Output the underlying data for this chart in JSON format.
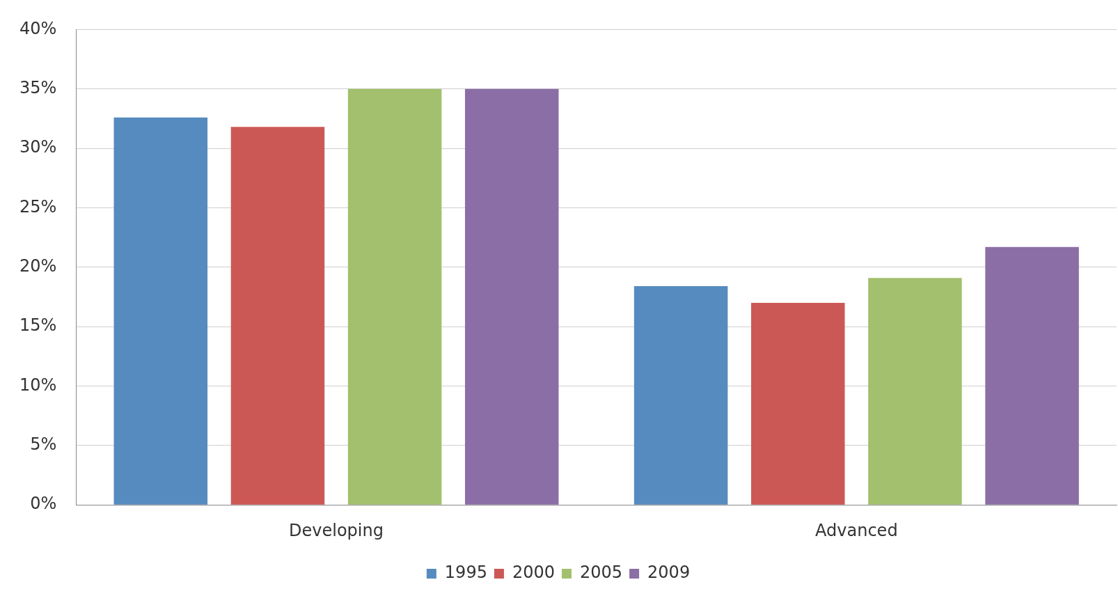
{
  "chart_data": {
    "type": "bar",
    "categories": [
      "Developing",
      "Advanced"
    ],
    "series": [
      {
        "name": "1995",
        "color": "#558bbf",
        "values": [
          32.6,
          18.4
        ]
      },
      {
        "name": "2000",
        "color": "#cc5855",
        "values": [
          31.8,
          17.0
        ]
      },
      {
        "name": "2005",
        "color": "#a2c06d",
        "values": [
          35.0,
          19.1
        ]
      },
      {
        "name": "2009",
        "color": "#8c6ea6",
        "values": [
          35.0,
          21.7
        ]
      }
    ],
    "ylim": [
      0,
      40
    ],
    "yticks": [
      {
        "value": 0,
        "label": "0%"
      },
      {
        "value": 5,
        "label": "5%"
      },
      {
        "value": 10,
        "label": "10%"
      },
      {
        "value": 15,
        "label": "15%"
      },
      {
        "value": 20,
        "label": "20%"
      },
      {
        "value": 25,
        "label": "25%"
      },
      {
        "value": 30,
        "label": "30%"
      },
      {
        "value": 35,
        "label": "35%"
      },
      {
        "value": 40,
        "label": "40%"
      }
    ],
    "grid": "y",
    "legend": "bottom"
  }
}
